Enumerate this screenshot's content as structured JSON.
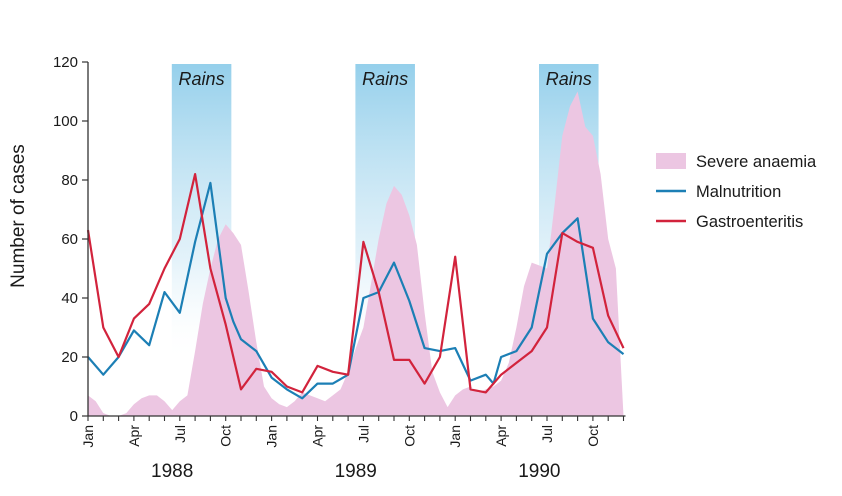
{
  "chart_data": {
    "type": "line",
    "ylabel": "Number of cases",
    "xlabel": "",
    "ylim": [
      0,
      120
    ],
    "y_ticks": [
      "0",
      "20",
      "40",
      "60",
      "80",
      "100",
      "120"
    ],
    "x_month_labels": [
      {
        "month": 0,
        "label": "Jan"
      },
      {
        "month": 3,
        "label": "Apr"
      },
      {
        "month": 6,
        "label": "Jul"
      },
      {
        "month": 9,
        "label": "Oct"
      },
      {
        "month": 12,
        "label": "Jan"
      },
      {
        "month": 15,
        "label": "Apr"
      },
      {
        "month": 18,
        "label": "Jul"
      },
      {
        "month": 21,
        "label": "Oct"
      },
      {
        "month": 24,
        "label": "Jan"
      },
      {
        "month": 27,
        "label": "Apr"
      },
      {
        "month": 30,
        "label": "Jul"
      },
      {
        "month": 33,
        "label": "Oct"
      }
    ],
    "years": [
      {
        "label": "1988",
        "center_month": 5.5
      },
      {
        "label": "1989",
        "center_month": 17.5
      },
      {
        "label": "1990",
        "center_month": 29.5
      }
    ],
    "rains": [
      {
        "label": "Rains",
        "start_month": 6,
        "end_month": 9.5
      },
      {
        "label": "Rains",
        "start_month": 18,
        "end_month": 21.5
      },
      {
        "label": "Rains",
        "start_month": 30,
        "end_month": 33.5
      }
    ],
    "series": [
      {
        "name": "Severe anaemia",
        "kind": "area",
        "color": "#ecc6e2",
        "x": [
          0,
          0.5,
          1,
          1.5,
          2,
          2.5,
          3,
          3.5,
          4,
          4.5,
          5,
          5.5,
          6,
          6.5,
          7,
          7.5,
          8,
          8.5,
          9,
          9.5,
          10,
          10.5,
          11,
          11.5,
          12,
          12.5,
          13,
          13.5,
          14,
          14.5,
          15,
          15.5,
          16,
          16.5,
          17,
          17.5,
          18,
          18.5,
          19,
          19.5,
          20,
          20.5,
          21,
          21.5,
          22,
          22.5,
          23,
          23.5,
          24,
          24.5,
          25,
          25.5,
          26,
          26.5,
          27,
          27.5,
          28,
          28.5,
          29,
          29.5,
          30,
          30.5,
          31,
          31.5,
          32,
          32.5,
          33,
          33.5,
          34,
          34.5,
          35
        ],
        "values": [
          7,
          5,
          1,
          0,
          0,
          1,
          4,
          6,
          7,
          7,
          5,
          2,
          5,
          7,
          22,
          38,
          50,
          60,
          65,
          62,
          58,
          42,
          25,
          10,
          6,
          4,
          3,
          5,
          8,
          7,
          6,
          5,
          7,
          9,
          15,
          23,
          30,
          45,
          60,
          72,
          78,
          75,
          68,
          58,
          35,
          15,
          8,
          3,
          7,
          9,
          10,
          8,
          9,
          10,
          12,
          18,
          30,
          44,
          52,
          51,
          50,
          72,
          95,
          105,
          110,
          98,
          95,
          82,
          60,
          50,
          0
        ]
      },
      {
        "name": "Malnutrition",
        "kind": "line",
        "color": "#1c7fb5",
        "x": [
          0,
          1,
          2,
          3,
          4,
          5,
          6,
          7,
          8,
          9,
          9.5,
          10,
          11,
          12,
          13,
          14,
          15,
          16,
          17,
          18,
          19,
          20,
          21,
          22,
          23,
          24,
          25,
          26,
          26.5,
          27,
          28,
          29,
          30,
          31,
          32,
          33,
          34,
          35
        ],
        "values": [
          20,
          14,
          20,
          29,
          24,
          42,
          35,
          59,
          79,
          40,
          32,
          26,
          22,
          13,
          9,
          6,
          11,
          11,
          14,
          40,
          42,
          52,
          39,
          23,
          22,
          23,
          12,
          14,
          11,
          20,
          22,
          30,
          55,
          62,
          67,
          33,
          25,
          21
        ]
      },
      {
        "name": "Gastroenteritis",
        "kind": "line",
        "color": "#d2233c",
        "x": [
          0,
          1,
          2,
          3,
          4,
          5,
          6,
          7,
          8,
          9,
          10,
          11,
          12,
          13,
          14,
          15,
          16,
          17,
          18,
          19,
          20,
          21,
          22,
          23,
          24,
          25,
          26,
          27,
          28,
          29,
          30,
          31,
          32,
          33,
          34,
          35
        ],
        "values": [
          63,
          30,
          20,
          33,
          38,
          50,
          60,
          82,
          50,
          31,
          9,
          16,
          15,
          10,
          8,
          17,
          15,
          14,
          59,
          42,
          19,
          19,
          11,
          20,
          54,
          9,
          8,
          14,
          18,
          22,
          30,
          62,
          59,
          57,
          34,
          23
        ]
      }
    ],
    "legend": {
      "placement": "right",
      "order": [
        "Severe anaemia",
        "Malnutrition",
        "Gastroenteritis"
      ]
    }
  }
}
